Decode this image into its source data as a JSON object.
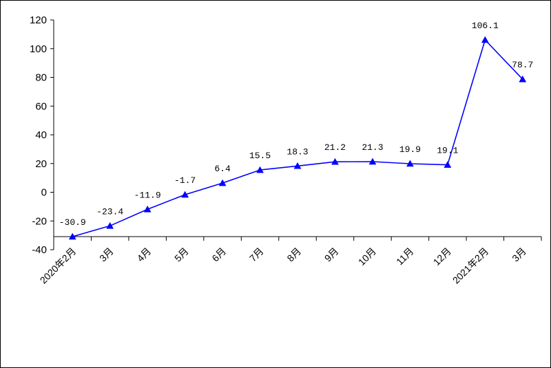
{
  "chart_data": {
    "type": "line",
    "title": "",
    "xlabel": "",
    "ylabel": "",
    "categories": [
      "2020年2月",
      "3月",
      "4月",
      "5月",
      "6月",
      "7月",
      "8月",
      "9月",
      "10月",
      "11月",
      "12月",
      "2021年2月",
      "3月"
    ],
    "series": [
      {
        "values": [
          -30.9,
          -23.4,
          -11.9,
          -1.7,
          6.4,
          15.5,
          18.3,
          21.2,
          21.3,
          19.9,
          19.1,
          106.1,
          78.7
        ],
        "labels": [
          "-30.9",
          "-23.4",
          "-11.9",
          "-1.7",
          "6.4",
          "15.5",
          "18.3",
          "21.2",
          "21.3",
          "19.9",
          "19.1",
          "106.1",
          "78.7"
        ],
        "color": "#0000ff",
        "marker": "triangle"
      }
    ],
    "ylim": [
      -40,
      120
    ],
    "yticks": [
      -40,
      -20,
      0,
      20,
      40,
      60,
      80,
      100,
      120
    ],
    "grid": false,
    "legend": "none"
  }
}
